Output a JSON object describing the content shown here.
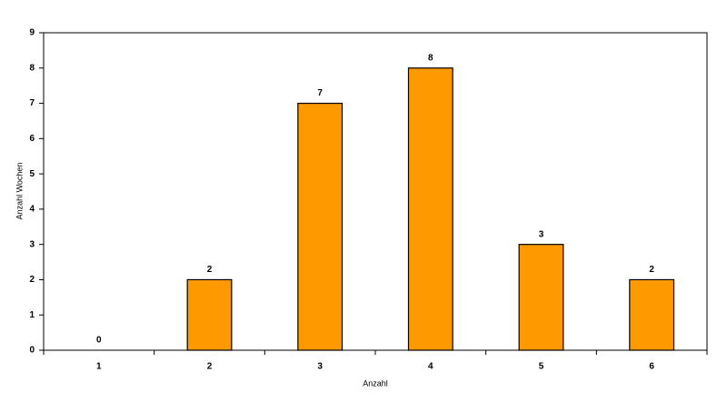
{
  "chart_data": {
    "type": "bar",
    "x_label": "Anzahl",
    "y_label": "Anzahl Wochen",
    "categories": [
      "1",
      "2",
      "3",
      "4",
      "5",
      "6"
    ],
    "values": [
      0,
      2,
      7,
      8,
      3,
      2
    ],
    "color": "#ff9900",
    "ylim": [
      0,
      9
    ],
    "yticks": [
      0,
      1,
      2,
      3,
      4,
      5,
      6,
      7,
      8,
      9
    ],
    "grid": false,
    "data_labels": true
  }
}
